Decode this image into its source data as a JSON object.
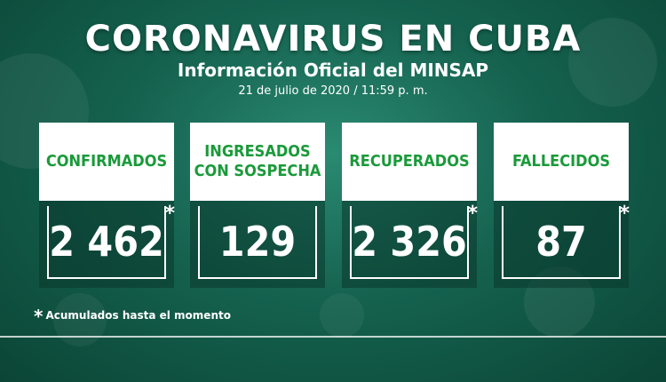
{
  "header": {
    "title": "CORONAVIRUS EN CUBA",
    "subtitle": "Información Oficial del MINSAP",
    "datetime": "21 de julio de 2020 / 11:59 p. m."
  },
  "cards": [
    {
      "label": "CONFIRMADOS",
      "value": "2 462",
      "asterisk": "*"
    },
    {
      "label_line1": "INGRESADOS",
      "label_line2": "CON SOSPECHA",
      "value": "129"
    },
    {
      "label": "RECUPERADOS",
      "value": "2 326",
      "asterisk": "*"
    },
    {
      "label": "FALLECIDOS",
      "value": "87",
      "asterisk": "*"
    }
  ],
  "footnote": {
    "asterisk": "*",
    "text": "Acumulados hasta el momento"
  },
  "colors": {
    "accent_green": "#1a9a3a",
    "background": "#15624f"
  }
}
